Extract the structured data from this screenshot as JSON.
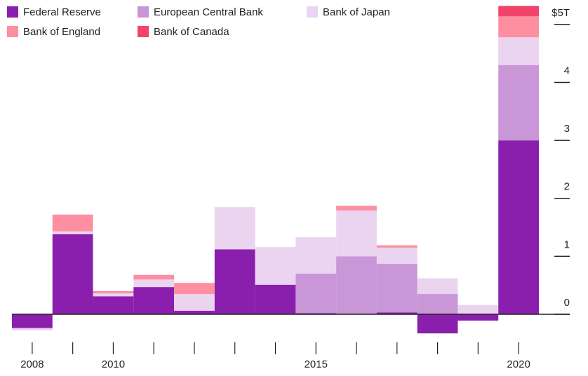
{
  "chart_data": {
    "type": "stacked_bar",
    "categories": [
      "2008",
      null,
      "2010",
      null,
      null,
      null,
      null,
      "2015",
      null,
      null,
      null,
      null,
      "2020"
    ],
    "series": [
      {
        "name": "Federal Reserve",
        "color": "#8b1fad",
        "values": [
          -0.24,
          1.38,
          0.31,
          0.47,
          0.06,
          1.12,
          0.51,
          0.02,
          0.01,
          0.03,
          -0.33,
          -0.11,
          3.0
        ]
      },
      {
        "name": "European Central Bank",
        "color": "#c996d8",
        "values": [
          0,
          0,
          0,
          0,
          0,
          0,
          0,
          0.68,
          0.99,
          0.84,
          0.35,
          0,
          1.3
        ]
      },
      {
        "name": "Bank of Japan",
        "color": "#ead4f0",
        "values": [
          -0.04,
          0.05,
          0.05,
          0.13,
          0.29,
          0.73,
          0.65,
          0.63,
          0.79,
          0.28,
          0.27,
          0.16,
          0.48
        ]
      },
      {
        "name": "Bank of England",
        "color": "#fd8fa0",
        "values": [
          0,
          0.29,
          0.04,
          0.08,
          0.19,
          0,
          0,
          0,
          0.08,
          0.04,
          0,
          0,
          0.36
        ]
      },
      {
        "name": "Bank of Canada",
        "color": "#f2436a",
        "values": [
          0,
          0,
          0,
          0,
          0,
          0,
          0,
          0,
          0,
          0,
          0,
          0,
          0.18
        ]
      }
    ],
    "ylim": [
      -0.4,
      5.35
    ],
    "yticks": [
      0,
      1,
      2,
      3,
      4,
      {
        "value": 5,
        "label": "$5T"
      }
    ],
    "legend": "top-left"
  }
}
